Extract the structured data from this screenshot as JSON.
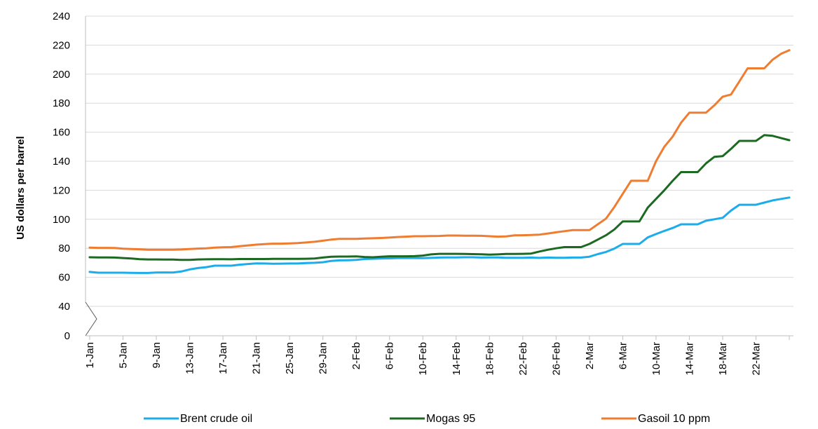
{
  "chart_data": {
    "type": "line",
    "title": "",
    "xlabel": "",
    "ylabel": "US dollars per barrel",
    "ylim": [
      0,
      240
    ],
    "y_axis_break": "between 0 and 40",
    "yticks": [
      "0",
      "40",
      "60",
      "80",
      "100",
      "120",
      "140",
      "160",
      "180",
      "200",
      "220",
      "240"
    ],
    "x": [
      "1-Jan",
      "2-Jan",
      "3-Jan",
      "4-Jan",
      "5-Jan",
      "6-Jan",
      "7-Jan",
      "8-Jan",
      "9-Jan",
      "10-Jan",
      "11-Jan",
      "12-Jan",
      "13-Jan",
      "14-Jan",
      "15-Jan",
      "16-Jan",
      "17-Jan",
      "18-Jan",
      "19-Jan",
      "20-Jan",
      "21-Jan",
      "22-Jan",
      "23-Jan",
      "24-Jan",
      "25-Jan",
      "26-Jan",
      "27-Jan",
      "28-Jan",
      "29-Jan",
      "30-Jan",
      "31-Jan",
      "1-Feb",
      "2-Feb",
      "3-Feb",
      "4-Feb",
      "5-Feb",
      "6-Feb",
      "7-Feb",
      "8-Feb",
      "9-Feb",
      "10-Feb",
      "11-Feb",
      "12-Feb",
      "13-Feb",
      "14-Feb",
      "15-Feb",
      "16-Feb",
      "17-Feb",
      "18-Feb",
      "19-Feb",
      "20-Feb",
      "21-Feb",
      "22-Feb",
      "23-Feb",
      "24-Feb",
      "25-Feb",
      "26-Feb",
      "27-Feb",
      "28-Feb",
      "1-Mar",
      "2-Mar",
      "3-Mar",
      "4-Mar",
      "5-Mar",
      "6-Mar",
      "7-Mar",
      "8-Mar",
      "9-Mar",
      "10-Mar",
      "11-Mar",
      "12-Mar",
      "13-Mar",
      "14-Mar",
      "15-Mar",
      "16-Mar",
      "17-Mar",
      "18-Mar",
      "19-Mar",
      "20-Mar",
      "21-Mar",
      "22-Mar",
      "23-Mar",
      "24-Mar",
      "25-Mar",
      "26-Mar"
    ],
    "xtick_labels": [
      "1-Jan",
      "5-Jan",
      "9-Jan",
      "13-Jan",
      "17-Jan",
      "21-Jan",
      "25-Jan",
      "29-Jan",
      "2-Feb",
      "6-Feb",
      "10-Feb",
      "14-Feb",
      "18-Feb",
      "22-Feb",
      "26-Feb",
      "2-Mar",
      "6-Mar",
      "10-Mar",
      "14-Mar",
      "18-Mar",
      "22-Mar"
    ],
    "xtick_every": 4,
    "grid": "horizontal",
    "legend_position": "bottom",
    "series": [
      {
        "name": "Brent crude oil",
        "color": "#1cacea",
        "values": [
          63.7,
          63.2,
          63.2,
          63.2,
          63.2,
          63.1,
          63.0,
          63.0,
          63.3,
          63.4,
          63.3,
          64.0,
          65.4,
          66.4,
          67.0,
          68.0,
          68.0,
          68.0,
          68.7,
          69.2,
          69.6,
          69.5,
          69.3,
          69.4,
          69.5,
          69.5,
          69.8,
          70.0,
          70.4,
          71.3,
          71.7,
          71.8,
          72.0,
          72.6,
          72.8,
          73.0,
          73.1,
          73.3,
          73.3,
          73.3,
          73.2,
          73.4,
          73.6,
          73.7,
          73.7,
          73.8,
          73.8,
          73.6,
          73.7,
          73.7,
          73.5,
          73.5,
          73.5,
          73.6,
          73.4,
          73.6,
          73.5,
          73.5,
          73.6,
          73.6,
          74.2,
          76.0,
          77.5,
          79.8,
          83.0,
          83.0,
          83.0,
          87.5,
          89.8,
          92.0,
          94.0,
          96.5,
          96.5,
          96.5,
          99.0,
          100.0,
          101.0,
          106.0,
          110.0,
          110.0,
          110.0,
          111.5,
          113.0,
          114.0,
          115.0
        ]
      },
      {
        "name": "Mogas 95",
        "color": "#1c6a22",
        "values": [
          73.8,
          73.7,
          73.7,
          73.6,
          73.3,
          73.0,
          72.5,
          72.3,
          72.3,
          72.2,
          72.2,
          72.0,
          72.0,
          72.3,
          72.4,
          72.5,
          72.5,
          72.4,
          72.6,
          72.6,
          72.6,
          72.6,
          72.7,
          72.7,
          72.7,
          72.7,
          72.8,
          73.0,
          73.6,
          74.2,
          74.3,
          74.3,
          74.4,
          74.0,
          73.8,
          74.2,
          74.5,
          74.5,
          74.5,
          74.6,
          75.0,
          75.8,
          76.2,
          76.2,
          76.2,
          76.1,
          76.0,
          75.9,
          75.6,
          75.8,
          76.1,
          76.1,
          76.2,
          76.4,
          77.8,
          79.0,
          80.0,
          80.8,
          80.8,
          80.8,
          83.0,
          86.0,
          89.0,
          93.0,
          98.5,
          98.5,
          98.5,
          108.0,
          114.0,
          120.0,
          126.5,
          132.5,
          132.5,
          132.5,
          138.5,
          143.0,
          143.5,
          148.5,
          154.0,
          154.0,
          154.0,
          158.0,
          157.5,
          156.0,
          154.5
        ]
      },
      {
        "name": "Gasoil 10 ppm",
        "color": "#ef7d31",
        "values": [
          80.5,
          80.3,
          80.3,
          80.2,
          79.7,
          79.5,
          79.3,
          79.0,
          79.0,
          79.0,
          79.0,
          79.2,
          79.5,
          79.8,
          80.0,
          80.5,
          80.7,
          80.8,
          81.4,
          82.0,
          82.5,
          82.9,
          83.2,
          83.2,
          83.4,
          83.6,
          84.0,
          84.5,
          85.2,
          86.0,
          86.5,
          86.5,
          86.5,
          86.7,
          86.9,
          87.1,
          87.4,
          87.8,
          88.0,
          88.3,
          88.3,
          88.4,
          88.5,
          88.8,
          88.8,
          88.7,
          88.7,
          88.6,
          88.3,
          88.0,
          88.2,
          88.9,
          89.0,
          89.2,
          89.4,
          90.2,
          91.0,
          91.8,
          92.5,
          92.5,
          92.5,
          96.5,
          100.5,
          108.5,
          117.5,
          126.5,
          126.5,
          126.5,
          140.0,
          150.0,
          157.0,
          166.5,
          173.5,
          173.5,
          173.5,
          178.5,
          184.5,
          186.0,
          195.0,
          204.0,
          204.0,
          204.0,
          210.0,
          214.0,
          216.5
        ]
      }
    ]
  }
}
